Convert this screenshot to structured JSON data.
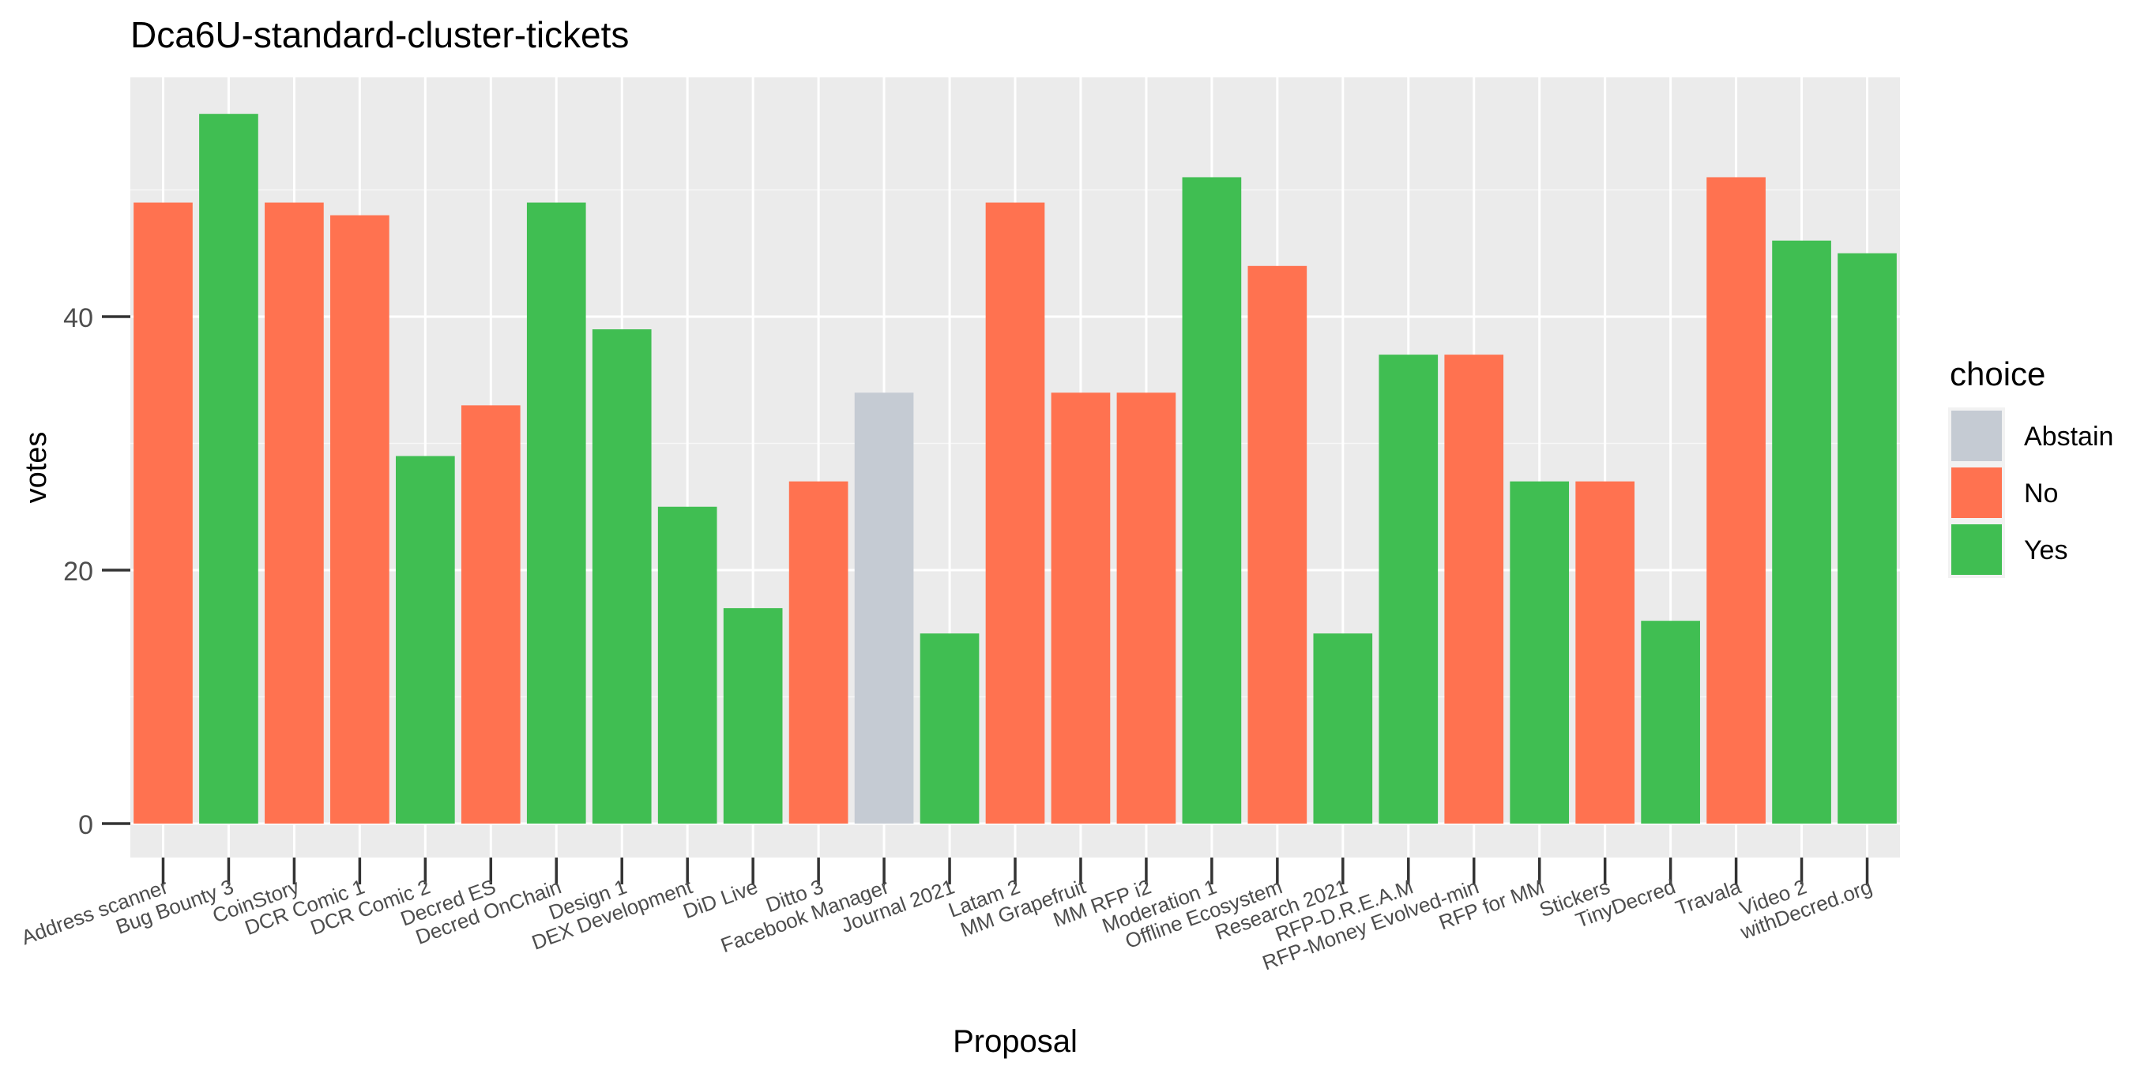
{
  "chart_data": {
    "type": "bar",
    "title": "Dca6U-standard-cluster-tickets",
    "xlabel": "Proposal",
    "ylabel": "votes",
    "ylim": [
      0,
      58
    ],
    "yticks": [
      0,
      20,
      40
    ],
    "grid": true,
    "legend": {
      "title": "choice",
      "position": "right",
      "entries": [
        "Abstain",
        "No",
        "Yes"
      ]
    },
    "colors": {
      "Abstain": "#c5cbd3",
      "No": "#ff7250",
      "Yes": "#40be52"
    },
    "categories": [
      "Address scanner",
      "Bug Bounty 3",
      "CoinStory",
      "DCR Comic 1",
      "DCR Comic 2",
      "Decred ES",
      "Decred OnChain",
      "Design 1",
      "DEX Development",
      "DiD Live",
      "Ditto 3",
      "Facebook Manager",
      "Journal 2021",
      "Latam 2",
      "MM Grapefruit",
      "MM RFP i2",
      "Moderation 1",
      "Offline Ecosystem",
      "Research 2021",
      "RFP-D.R.E.A.M",
      "RFP-Money Evolved-min",
      "RFP for MM",
      "Stickers",
      "TinyDecred",
      "Travala",
      "Video 2",
      "withDecred.org"
    ],
    "bars": [
      {
        "category": "Address scanner",
        "choice": "No",
        "value": 49
      },
      {
        "category": "Bug Bounty 3",
        "choice": "Yes",
        "value": 56
      },
      {
        "category": "CoinStory",
        "choice": "No",
        "value": 49
      },
      {
        "category": "CoinStory",
        "choice": "No",
        "value": 48
      },
      {
        "category": "DCR Comic 1",
        "choice": "Yes",
        "value": 29
      },
      {
        "category": "DCR Comic 2",
        "choice": "No",
        "value": 33
      },
      {
        "category": "Decred ES",
        "choice": "Yes",
        "value": 49
      },
      {
        "category": "Decred OnChain",
        "choice": "Yes",
        "value": 39
      },
      {
        "category": "Design 1",
        "choice": "Yes",
        "value": 25
      },
      {
        "category": "DEX Development",
        "choice": "Yes",
        "value": 17
      },
      {
        "category": "DiD Live",
        "choice": "No",
        "value": 27
      },
      {
        "category": "Ditto 3",
        "choice": "Abstain",
        "value": 34
      },
      {
        "category": "Facebook Manager",
        "choice": "Yes",
        "value": 15
      },
      {
        "category": "Journal 2021",
        "choice": "No",
        "value": 49
      },
      {
        "category": "Latam 2",
        "choice": "No",
        "value": 34
      },
      {
        "category": "MM Grapefruit",
        "choice": "No",
        "value": 34
      },
      {
        "category": "MM RFP i2",
        "choice": "Yes",
        "value": 51
      },
      {
        "category": "Moderation 1",
        "choice": "No",
        "value": 44
      },
      {
        "category": "Offline Ecosystem",
        "choice": "Yes",
        "value": 15
      },
      {
        "category": "Research 2021",
        "choice": "Yes",
        "value": 37
      },
      {
        "category": "RFP-D.R.E.A.M",
        "choice": "No",
        "value": 37
      },
      {
        "category": "RFP-Money Evolved-min",
        "choice": "Yes",
        "value": 27
      },
      {
        "category": "RFP for MM",
        "choice": "No",
        "value": 27
      },
      {
        "category": "Stickers",
        "choice": "Yes",
        "value": 16
      },
      {
        "category": "TinyDecred",
        "choice": "No",
        "value": 51
      },
      {
        "category": "Travala",
        "choice": "Yes",
        "value": 46
      },
      {
        "category": "Video 2",
        "choice": "Yes",
        "value": 45
      }
    ]
  }
}
